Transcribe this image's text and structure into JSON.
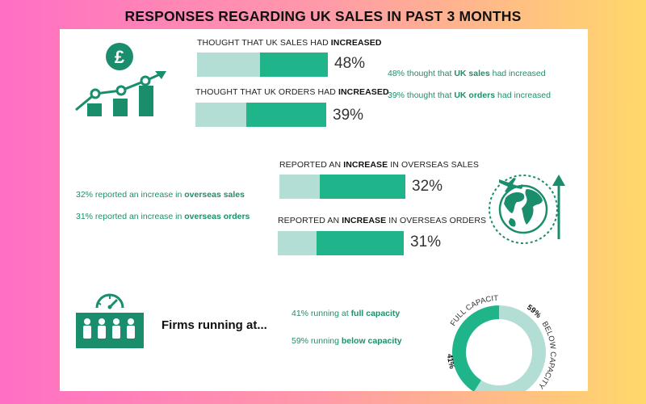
{
  "title": "RESPONSES REGARDING UK SALES IN PAST 3 MONTHS",
  "colors": {
    "dark_green": "#20b48b",
    "light_green": "#b2ded6",
    "icon_green": "#1a8d6c",
    "text_green": "#1f8e6b"
  },
  "bars": [
    {
      "label_pre": "THOUGHT THAT UK SALES HAD ",
      "label_bold": "INCREASED",
      "label_post": "",
      "value": 48,
      "value_label": "48%"
    },
    {
      "label_pre": "THOUGHT THAT UK ORDERS HAD ",
      "label_bold": "INCREASED",
      "label_post": "",
      "value": 39,
      "value_label": "39%"
    },
    {
      "label_pre": "REPORTED AN ",
      "label_bold": "INCREASE",
      "label_post": " IN OVERSEAS SALES",
      "value": 32,
      "value_label": "32%"
    },
    {
      "label_pre": "REPORTED AN ",
      "label_bold": "INCREASE",
      "label_post": " IN OVERSEAS ORDERS",
      "value": 31,
      "value_label": "31%"
    }
  ],
  "notes": [
    {
      "pre": "48% thought that ",
      "bold": "UK sales",
      "post": " had increased"
    },
    {
      "pre": "39% thought that ",
      "bold": "UK orders",
      "post": " had increased"
    },
    {
      "pre": "32% reported an increase in ",
      "bold": "overseas sales",
      "post": ""
    },
    {
      "pre": "31% reported an increase in ",
      "bold": "overseas orders",
      "post": ""
    },
    {
      "pre": "41% running at ",
      "bold": "full capacity",
      "post": ""
    },
    {
      "pre": "59% running ",
      "bold": "below capacity",
      "post": ""
    }
  ],
  "firms_label": "Firms running at...",
  "donut": {
    "full_label": "FULL CAPACITY",
    "full_value": "41%",
    "below_label": "BELOW CAPACITY",
    "below_value": "59%"
  },
  "icons": [
    "pound-growth-icon",
    "globe-plane-icon",
    "capacity-gauge-icon"
  ],
  "chart_data": [
    {
      "type": "bar",
      "title": "RESPONSES REGARDING UK SALES IN PAST 3 MONTHS",
      "categories": [
        "THOUGHT THAT UK SALES HAD INCREASED",
        "THOUGHT THAT UK ORDERS HAD INCREASED",
        "REPORTED AN INCREASE IN OVERSEAS SALES",
        "REPORTED AN INCREASE IN OVERSEAS ORDERS"
      ],
      "values": [
        48,
        39,
        32,
        31
      ],
      "ylim": [
        0,
        100
      ],
      "grid": false
    },
    {
      "type": "pie",
      "categories": [
        "FULL CAPACITY",
        "BELOW CAPACITY"
      ],
      "values": [
        41,
        59
      ]
    }
  ]
}
